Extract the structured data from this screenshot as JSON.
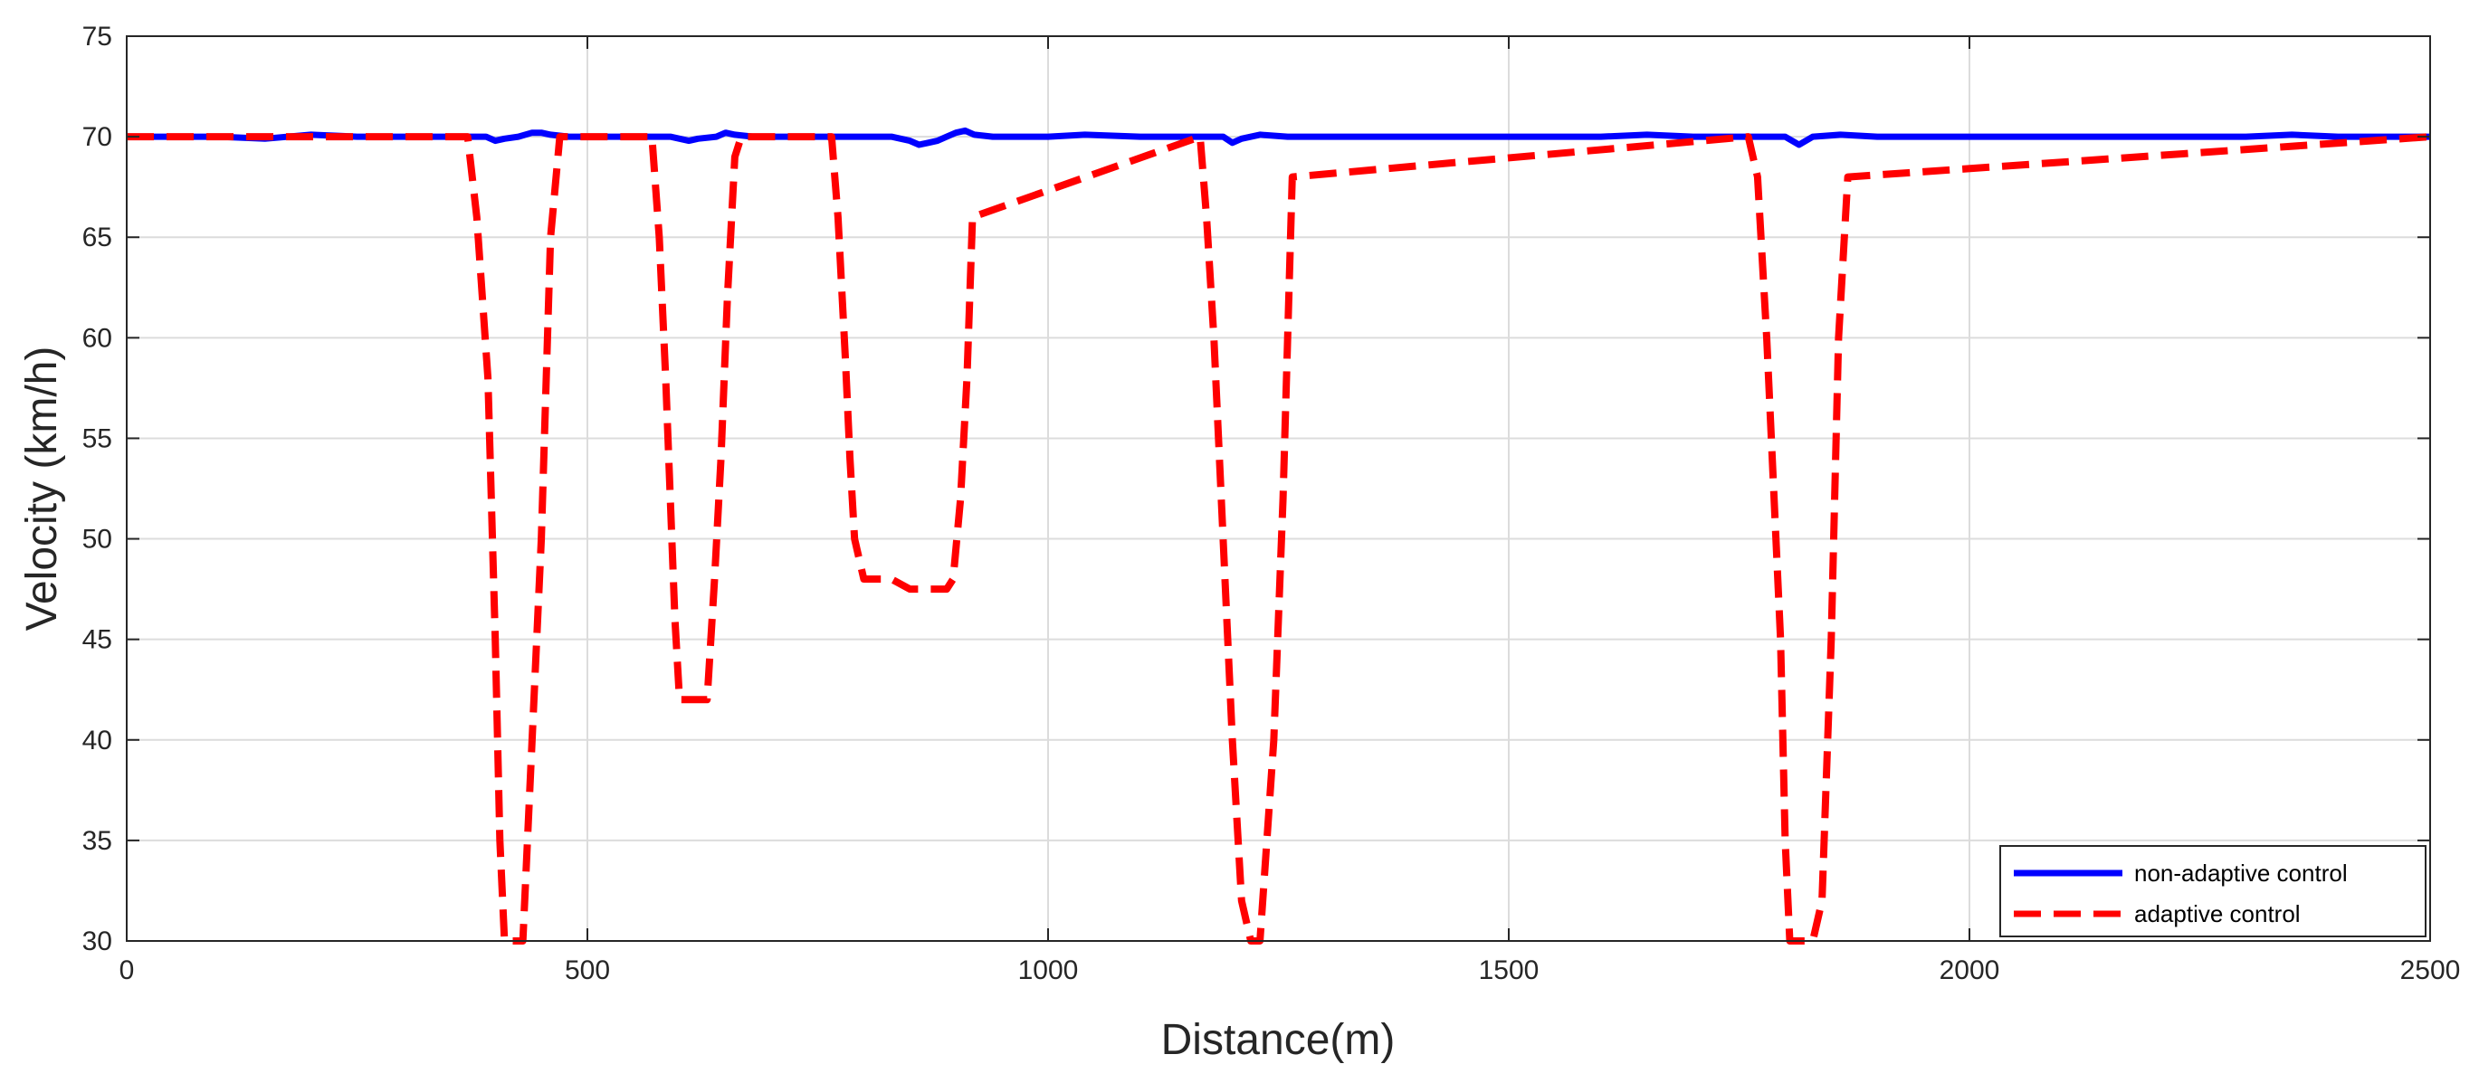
{
  "chart_data": {
    "type": "line",
    "title": "",
    "xlabel": "Distance(m)",
    "ylabel": "Velocity (km/h)",
    "xlim": [
      0,
      2500
    ],
    "ylim": [
      30,
      75
    ],
    "xticks": [
      0,
      500,
      1000,
      1500,
      2000,
      2500
    ],
    "yticks": [
      30,
      35,
      40,
      45,
      50,
      55,
      60,
      65,
      70,
      75
    ],
    "grid": true,
    "legend_position": "bottom-right",
    "series": [
      {
        "name": "non-adaptive control",
        "color": "#0000ff",
        "style": "solid",
        "x": [
          0,
          100,
          150,
          200,
          250,
          300,
          350,
          375,
          390,
          400,
          410,
          425,
          440,
          450,
          460,
          480,
          500,
          530,
          560,
          590,
          610,
          620,
          640,
          650,
          660,
          680,
          700,
          730,
          760,
          790,
          810,
          830,
          850,
          860,
          870,
          880,
          890,
          900,
          910,
          920,
          940,
          960,
          1000,
          1040,
          1100,
          1150,
          1170,
          1190,
          1200,
          1210,
          1230,
          1260,
          1300,
          1400,
          1500,
          1600,
          1650,
          1700,
          1750,
          1780,
          1800,
          1815,
          1830,
          1860,
          1900,
          2000,
          2100,
          2200,
          2300,
          2350,
          2400,
          2500
        ],
        "values": [
          70,
          70,
          69.9,
          70.1,
          70,
          70,
          70,
          70,
          70,
          69.8,
          69.9,
          70,
          70.2,
          70.2,
          70.1,
          70,
          70,
          70,
          70,
          70,
          69.8,
          69.9,
          70,
          70.2,
          70.1,
          70,
          70,
          70,
          70,
          70,
          70,
          70,
          69.8,
          69.6,
          69.7,
          69.8,
          70,
          70.2,
          70.3,
          70.1,
          70,
          70,
          70,
          70.1,
          70,
          70,
          70,
          70,
          69.7,
          69.9,
          70.1,
          70,
          70,
          70,
          70,
          70,
          70.1,
          70,
          70,
          70,
          70,
          69.6,
          70,
          70.1,
          70,
          70,
          70,
          70,
          70,
          70.1,
          70,
          70
        ]
      },
      {
        "name": "adaptive control",
        "color": "#ff0000",
        "style": "dashed",
        "x": [
          0,
          370,
          380,
          392,
          400,
          405,
          410,
          420,
          430,
          440,
          450,
          460,
          470,
          570,
          578,
          585,
          590,
          595,
          600,
          610,
          630,
          638,
          645,
          652,
          660,
          667,
          765,
          772,
          780,
          785,
          790,
          800,
          830,
          850,
          870,
          890,
          897,
          905,
          912,
          918,
          1165,
          1172,
          1180,
          1190,
          1200,
          1210,
          1220,
          1230,
          1245,
          1255,
          1265,
          1760,
          1770,
          1780,
          1795,
          1800,
          1805,
          1810,
          1830,
          1840,
          1850,
          1858,
          1868,
          2500
        ],
        "values": [
          70,
          70,
          66,
          58,
          45,
          35,
          30,
          30,
          30,
          40,
          50,
          65,
          70,
          70,
          65,
          58,
          52,
          46,
          42,
          42,
          42,
          48,
          54,
          62,
          69,
          70,
          70,
          66,
          59,
          54,
          50,
          48,
          48,
          47.5,
          47.5,
          47.5,
          48,
          52,
          58,
          66,
          70,
          66,
          60,
          50,
          40,
          32,
          30,
          30,
          40,
          52,
          68,
          70,
          68,
          60,
          45,
          35,
          30,
          30,
          30,
          32,
          45,
          60,
          68,
          70
        ]
      }
    ]
  }
}
